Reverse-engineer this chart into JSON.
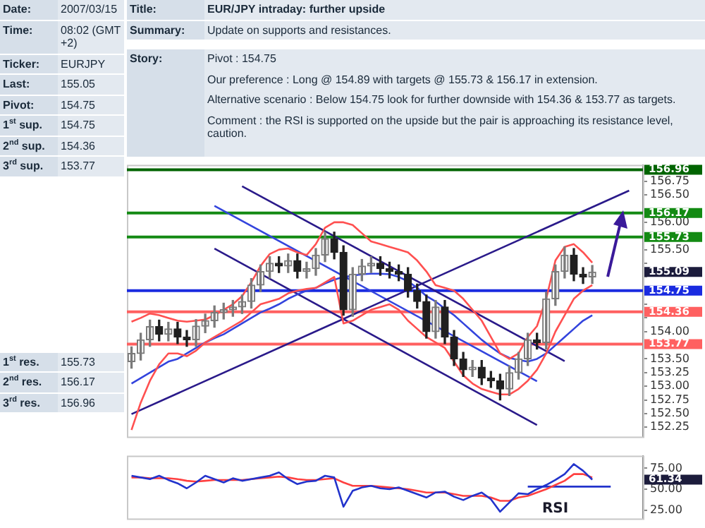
{
  "chart_data": [
    {
      "type": "other",
      "annotations": [
        "Date:",
        "2007/03/15",
        "Time:",
        "08:02 (GMT +2)",
        "Ticker:",
        "EURJPY",
        "Last:",
        "155.05",
        "Pivot:",
        "154.75",
        "1$^{st}$ sup.",
        "154.75",
        "2$^{nd}$ sup.",
        "154.36",
        "3$^{rd}$ sup.",
        "153.77",
        "1$^{st}$ res.",
        "155.73",
        "2$^{nd}$ res.",
        "156.17",
        "3$^{rd}$ res.",
        "156.96"
      ]
    },
    {
      "type": "other",
      "annotations": [
        "Title:",
        "EUR/JPY intraday: further upside",
        "Summary:",
        "Update on supports and resistances."
      ]
    },
    {
      "type": "other",
      "title": "Story:",
      "annotations": [
        "Pivot : 154.75",
        "Our preference : Long @ 154.89 with targets @ 155.73 & 156.17 in extension.",
        "Alternative scenario : Below 154.75 look for further downside with 154.36 & 153.77 as targets.",
        "Comment : the RSI is supported on the upside but the pair is approaching its resistance level, caution."
      ]
    },
    {
      "type": "candlestick",
      "tick_labels": "y",
      "categories": [
        null,
        null,
        null,
        null,
        null,
        null,
        null,
        null,
        null,
        null,
        null,
        null,
        null,
        null,
        null,
        null,
        null,
        null,
        null,
        null,
        null,
        null,
        null,
        null,
        null,
        null,
        null,
        null,
        null,
        null,
        null,
        null,
        null,
        null,
        null,
        null,
        null,
        null,
        null,
        null,
        null,
        null,
        null,
        null,
        null,
        null,
        null,
        null,
        null,
        null,
        null,
        null,
        null,
        null,
        null,
        null
      ],
      "ohlc": [
        [
          153.45,
          153.72,
          153.33,
          153.6
        ],
        [
          153.6,
          153.97,
          153.48,
          153.85
        ],
        [
          153.85,
          154.21,
          153.73,
          154.09
        ],
        [
          154.09,
          154.21,
          153.83,
          153.95
        ],
        [
          153.95,
          154.17,
          153.83,
          154.05
        ],
        [
          154.05,
          154.17,
          153.78,
          153.9
        ],
        [
          153.9,
          154.02,
          153.73,
          153.85
        ],
        [
          153.85,
          154.22,
          153.73,
          154.1
        ],
        [
          154.1,
          154.32,
          153.98,
          154.2
        ],
        [
          154.2,
          154.47,
          154.08,
          154.35
        ],
        [
          154.35,
          154.52,
          154.23,
          154.4
        ],
        [
          154.4,
          154.57,
          154.28,
          154.45
        ],
        [
          154.45,
          154.67,
          154.33,
          154.55
        ],
        [
          154.55,
          154.97,
          154.43,
          154.85
        ],
        [
          154.85,
          155.22,
          154.73,
          155.1
        ],
        [
          155.1,
          155.37,
          154.98,
          155.25
        ],
        [
          155.25,
          155.37,
          155.08,
          155.2
        ],
        [
          155.2,
          155.42,
          155.08,
          155.3
        ],
        [
          155.3,
          155.42,
          154.98,
          155.1
        ],
        [
          155.1,
          155.27,
          154.98,
          155.15
        ],
        [
          155.15,
          155.52,
          155.03,
          155.4
        ],
        [
          155.4,
          155.82,
          155.28,
          155.7
        ],
        [
          155.7,
          155.82,
          155.33,
          155.45
        ],
        [
          155.45,
          155.57,
          154.3,
          154.4
        ],
        [
          154.4,
          155.17,
          154.28,
          155.05
        ],
        [
          155.05,
          155.32,
          154.93,
          155.2
        ],
        [
          155.2,
          155.37,
          155.08,
          155.25
        ],
        [
          155.25,
          155.37,
          155.03,
          155.15
        ],
        [
          155.15,
          155.27,
          154.98,
          155.1
        ],
        [
          155.1,
          155.22,
          154.93,
          155.05
        ],
        [
          155.05,
          155.17,
          154.63,
          154.75
        ],
        [
          154.75,
          154.87,
          154.43,
          154.55
        ],
        [
          154.55,
          154.67,
          153.88,
          154
        ],
        [
          154,
          154.57,
          153.88,
          154.45
        ],
        [
          154.45,
          154.57,
          153.78,
          153.9
        ],
        [
          153.9,
          154.02,
          153.38,
          153.5
        ],
        [
          153.5,
          153.62,
          153.18,
          153.3
        ],
        [
          153.3,
          153.47,
          153.18,
          153.35
        ],
        [
          153.35,
          153.47,
          153.03,
          153.15
        ],
        [
          153.15,
          153.27,
          152.98,
          153.1
        ],
        [
          153.1,
          153.22,
          152.75,
          152.95
        ],
        [
          152.95,
          153.37,
          152.83,
          153.25
        ],
        [
          153.25,
          153.62,
          153.13,
          153.5
        ],
        [
          153.5,
          153.97,
          153.38,
          153.85
        ],
        [
          153.85,
          153.97,
          153.68,
          153.8
        ],
        [
          153.8,
          154.72,
          153.68,
          154.6
        ],
        [
          154.6,
          155.22,
          154.48,
          155.1
        ],
        [
          155.1,
          155.55,
          154.98,
          155.4
        ],
        [
          155.4,
          155.52,
          154.93,
          155.05
        ],
        [
          155.05,
          155.17,
          154.88,
          155
        ],
        [
          155,
          155.21,
          154.88,
          155.09
        ],
        null,
        null,
        null,
        null,
        null
      ],
      "series": [
        {
          "type": "line",
          "color": "#ff5050",
          "values": [
            154.18,
            154.25,
            154.33,
            154.3,
            154.25,
            154.2,
            154.18,
            154.2,
            154.22,
            154.3,
            154.4,
            154.5,
            154.65,
            154.9,
            155.2,
            155.42,
            155.5,
            155.52,
            155.45,
            155.4,
            155.6,
            155.9,
            156,
            156,
            155.95,
            155.8,
            155.65,
            155.6,
            155.55,
            155.5,
            155.45,
            155.3,
            155.1,
            154.85,
            154.8,
            154.75,
            154.6,
            154.4,
            154.2,
            153.9,
            153.6,
            153.5,
            153.6,
            153.9,
            154.1,
            154.6,
            155.3,
            155.55,
            155.6,
            155.45,
            155.26,
            null,
            null,
            null,
            null,
            null
          ]
        },
        {
          "type": "line",
          "color": "#ff5050",
          "values": [
            152.2,
            152.7,
            153.1,
            153.4,
            153.6,
            153.6,
            153.55,
            153.65,
            153.8,
            153.9,
            154,
            154.1,
            154.2,
            154.35,
            154.5,
            154.55,
            154.6,
            154.7,
            154.75,
            154.78,
            154.8,
            154.9,
            155,
            154.15,
            154.2,
            154.3,
            154.4,
            154.45,
            154.5,
            154.4,
            154.2,
            154.05,
            153.9,
            153.8,
            153.7,
            153.45,
            153.2,
            153.05,
            152.95,
            152.9,
            152.85,
            152.85,
            152.95,
            153.1,
            153.3,
            153.6,
            154,
            154.3,
            154.6,
            154.75,
            154.85,
            null,
            null,
            null,
            null,
            null
          ]
        },
        {
          "type": "line",
          "color": "#3344dd",
          "values": [
            153.05,
            153.15,
            153.25,
            153.35,
            153.45,
            153.5,
            153.6,
            153.7,
            153.8,
            153.88,
            153.95,
            154.05,
            154.15,
            154.25,
            154.35,
            154.42,
            154.5,
            154.6,
            154.68,
            154.75,
            154.8,
            154.88,
            154.95,
            155,
            155.02,
            155.05,
            155.06,
            155.06,
            155.05,
            155,
            154.92,
            154.8,
            154.65,
            154.55,
            154.42,
            154.3,
            154.15,
            154,
            153.85,
            153.72,
            153.6,
            153.52,
            153.48,
            153.45,
            153.5,
            153.6,
            153.75,
            153.9,
            154.05,
            154.2,
            154.3,
            null,
            null,
            null,
            null,
            null
          ]
        },
        {
          "type": "line",
          "color": "#2a1a8a",
          "values": [
            152.49,
            null,
            null,
            null,
            null,
            null,
            null,
            null,
            null,
            null,
            null,
            null,
            null,
            null,
            null,
            null,
            null,
            null,
            null,
            null,
            null,
            null,
            null,
            null,
            null,
            null,
            null,
            null,
            null,
            null,
            null,
            null,
            null,
            null,
            null,
            null,
            null,
            null,
            null,
            null,
            null,
            null,
            null,
            null,
            null,
            null,
            null,
            null,
            null,
            null,
            null,
            null,
            null,
            null,
            156.58,
            null
          ]
        },
        {
          "type": "line",
          "color": "#2a1a8a",
          "values": [
            null,
            null,
            null,
            null,
            null,
            null,
            null,
            null,
            null,
            null,
            null,
            null,
            156.66,
            null,
            null,
            null,
            null,
            null,
            null,
            null,
            null,
            null,
            null,
            null,
            null,
            null,
            null,
            null,
            null,
            null,
            null,
            null,
            null,
            null,
            null,
            null,
            null,
            null,
            null,
            null,
            null,
            null,
            null,
            null,
            null,
            null,
            null,
            153.46,
            null,
            null,
            null,
            null,
            null,
            null,
            null,
            null
          ]
        },
        {
          "type": "line",
          "color": "#2a1a8a",
          "values": [
            null,
            null,
            null,
            null,
            null,
            null,
            null,
            null,
            null,
            155.52,
            null,
            null,
            null,
            null,
            null,
            null,
            null,
            null,
            null,
            null,
            null,
            null,
            null,
            null,
            null,
            null,
            null,
            null,
            null,
            null,
            null,
            null,
            null,
            null,
            null,
            null,
            null,
            null,
            null,
            null,
            null,
            null,
            null,
            null,
            152.29,
            null,
            null,
            null,
            null,
            null,
            null,
            null,
            null,
            null,
            null,
            null
          ]
        },
        {
          "type": "line",
          "color": "#3344dd",
          "values": [
            null,
            null,
            null,
            null,
            null,
            null,
            null,
            null,
            null,
            156.3,
            null,
            null,
            null,
            null,
            null,
            null,
            null,
            null,
            null,
            null,
            null,
            null,
            null,
            null,
            null,
            null,
            null,
            null,
            null,
            null,
            null,
            null,
            null,
            null,
            null,
            null,
            null,
            null,
            null,
            null,
            null,
            null,
            null,
            null,
            153.09,
            null,
            null,
            null,
            null,
            null,
            null,
            null,
            null,
            null,
            null,
            null
          ]
        }
      ],
      "ylim": [
        152.08,
        157.05
      ],
      "yticks": [
        {
          "value": 152.25,
          "label": "152.25"
        },
        {
          "value": 152.5,
          "label": "152.50"
        },
        {
          "value": 152.75,
          "label": "152.75"
        },
        {
          "value": 153,
          "label": "153.00"
        },
        {
          "value": 153.25,
          "label": "153.25"
        },
        {
          "value": 153.5,
          "label": "153.50"
        },
        {
          "value": 153.75,
          "label": null
        },
        {
          "value": 154,
          "label": "154.00"
        },
        {
          "value": 154.25,
          "label": null
        },
        {
          "value": 154.5,
          "label": null
        },
        {
          "value": 154.75,
          "label": null
        },
        {
          "value": 155,
          "label": null
        },
        {
          "value": 155.25,
          "label": null
        },
        {
          "value": 155.5,
          "label": "155.50"
        },
        {
          "value": 155.75,
          "label": null
        },
        {
          "value": 156,
          "label": "156.00"
        },
        {
          "value": 156.25,
          "label": null
        },
        {
          "value": 156.5,
          "label": "156.50"
        },
        {
          "value": 156.75,
          "label": "156.75"
        }
      ],
      "ref_lines": [
        {
          "axis": "y",
          "value": 156.96,
          "label": "156.96",
          "color": "#006400"
        },
        {
          "axis": "y",
          "value": 156.17,
          "label": "156.17",
          "color": "#138a13"
        },
        {
          "axis": "y",
          "value": 155.73,
          "label": "155.73",
          "color": "#138a13"
        },
        {
          "axis": "y",
          "value": 154.75,
          "label": "154.75",
          "color": "#1a2be0"
        },
        {
          "axis": "y",
          "value": 154.36,
          "label": "154.36",
          "color": "#ff6060"
        },
        {
          "axis": "y",
          "value": 153.77,
          "label": "153.77",
          "color": "#ff6060"
        }
      ],
      "annotations": [
        "155.09"
      ]
    },
    {
      "type": "line",
      "tick_labels": "y",
      "categories": [
        null,
        null,
        null,
        null,
        null,
        null,
        null,
        null,
        null,
        null,
        null,
        null,
        null,
        null,
        null,
        null,
        null,
        null,
        null,
        null,
        null,
        null,
        null,
        null,
        null,
        null,
        null,
        null,
        null,
        null,
        null,
        null,
        null,
        null,
        null,
        null,
        null,
        null,
        null,
        null,
        null,
        null,
        null,
        null,
        null,
        null,
        null,
        null,
        null,
        null,
        null,
        null,
        null,
        null,
        null,
        null
      ],
      "series": [
        {
          "color": "#2233cc",
          "values": [
            66,
            64,
            62,
            66,
            61,
            57,
            51,
            58,
            66,
            62,
            58,
            63,
            60,
            62,
            64,
            66,
            70,
            62,
            56,
            59,
            60,
            66,
            64,
            29,
            48,
            52,
            54,
            51,
            50,
            52,
            48,
            44,
            40,
            46,
            47,
            41,
            37,
            42,
            46,
            38,
            23,
            34,
            45,
            44,
            50,
            55,
            61,
            68,
            80,
            72,
            61.34,
            null,
            null,
            null,
            null,
            null
          ]
        },
        {
          "color": "#ff4040",
          "values": [
            64,
            64,
            63,
            63,
            63,
            62,
            60,
            59,
            60,
            61,
            61,
            61,
            61,
            62,
            63,
            64,
            65,
            64,
            62,
            61,
            61,
            62,
            63,
            58,
            54,
            54,
            54,
            53,
            52,
            51,
            50,
            48,
            46,
            46,
            46,
            44,
            42,
            42,
            42,
            40,
            36,
            36,
            40,
            42,
            46,
            50,
            55,
            60,
            68,
            68,
            64,
            null,
            null,
            null,
            null,
            null
          ]
        },
        {
          "color": "#2233cc",
          "values": [
            null,
            null,
            null,
            null,
            null,
            null,
            null,
            null,
            null,
            null,
            null,
            null,
            null,
            null,
            null,
            null,
            null,
            null,
            null,
            null,
            null,
            null,
            null,
            null,
            null,
            null,
            null,
            null,
            null,
            null,
            null,
            null,
            null,
            null,
            null,
            null,
            null,
            null,
            null,
            null,
            null,
            null,
            null,
            53,
            53,
            53,
            53,
            53,
            53,
            53,
            53,
            53,
            53,
            null,
            null,
            null
          ]
        }
      ],
      "ylim": [
        15,
        90
      ],
      "yticks": [
        {
          "value": 25,
          "label": "25.00"
        },
        {
          "value": 50,
          "label": "50.00"
        },
        {
          "value": 75,
          "label": "75.00"
        }
      ],
      "annotations": [
        "RSI",
        "61.34"
      ]
    }
  ]
}
